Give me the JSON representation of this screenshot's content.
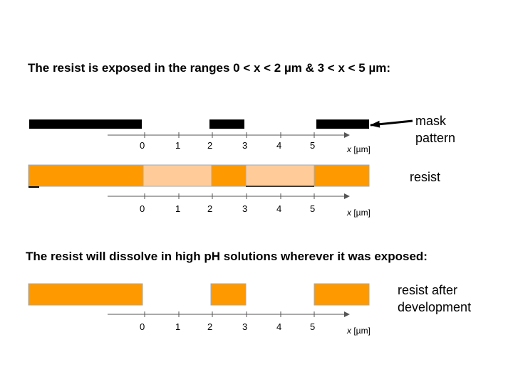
{
  "heading_exposed": "The resist is exposed in the ranges 0 < x < 2 µm & 3 < x < 5 µm:",
  "heading_dissolve": "The resist will dissolve in high pH solutions wherever it was exposed:",
  "labels": {
    "mask_line1": "mask",
    "mask_line2": "pattern",
    "resist": "resist",
    "after_line1": "resist after",
    "after_line2": "development"
  },
  "axis": {
    "ticks": [
      "0",
      "1",
      "2",
      "3",
      "4",
      "5"
    ],
    "unit_var": "x",
    "unit_rest": " [µm]"
  },
  "colors": {
    "mask": "#000000",
    "resist": "#ff9900",
    "exposed": "#ffcc99",
    "axis": "#555555"
  }
}
